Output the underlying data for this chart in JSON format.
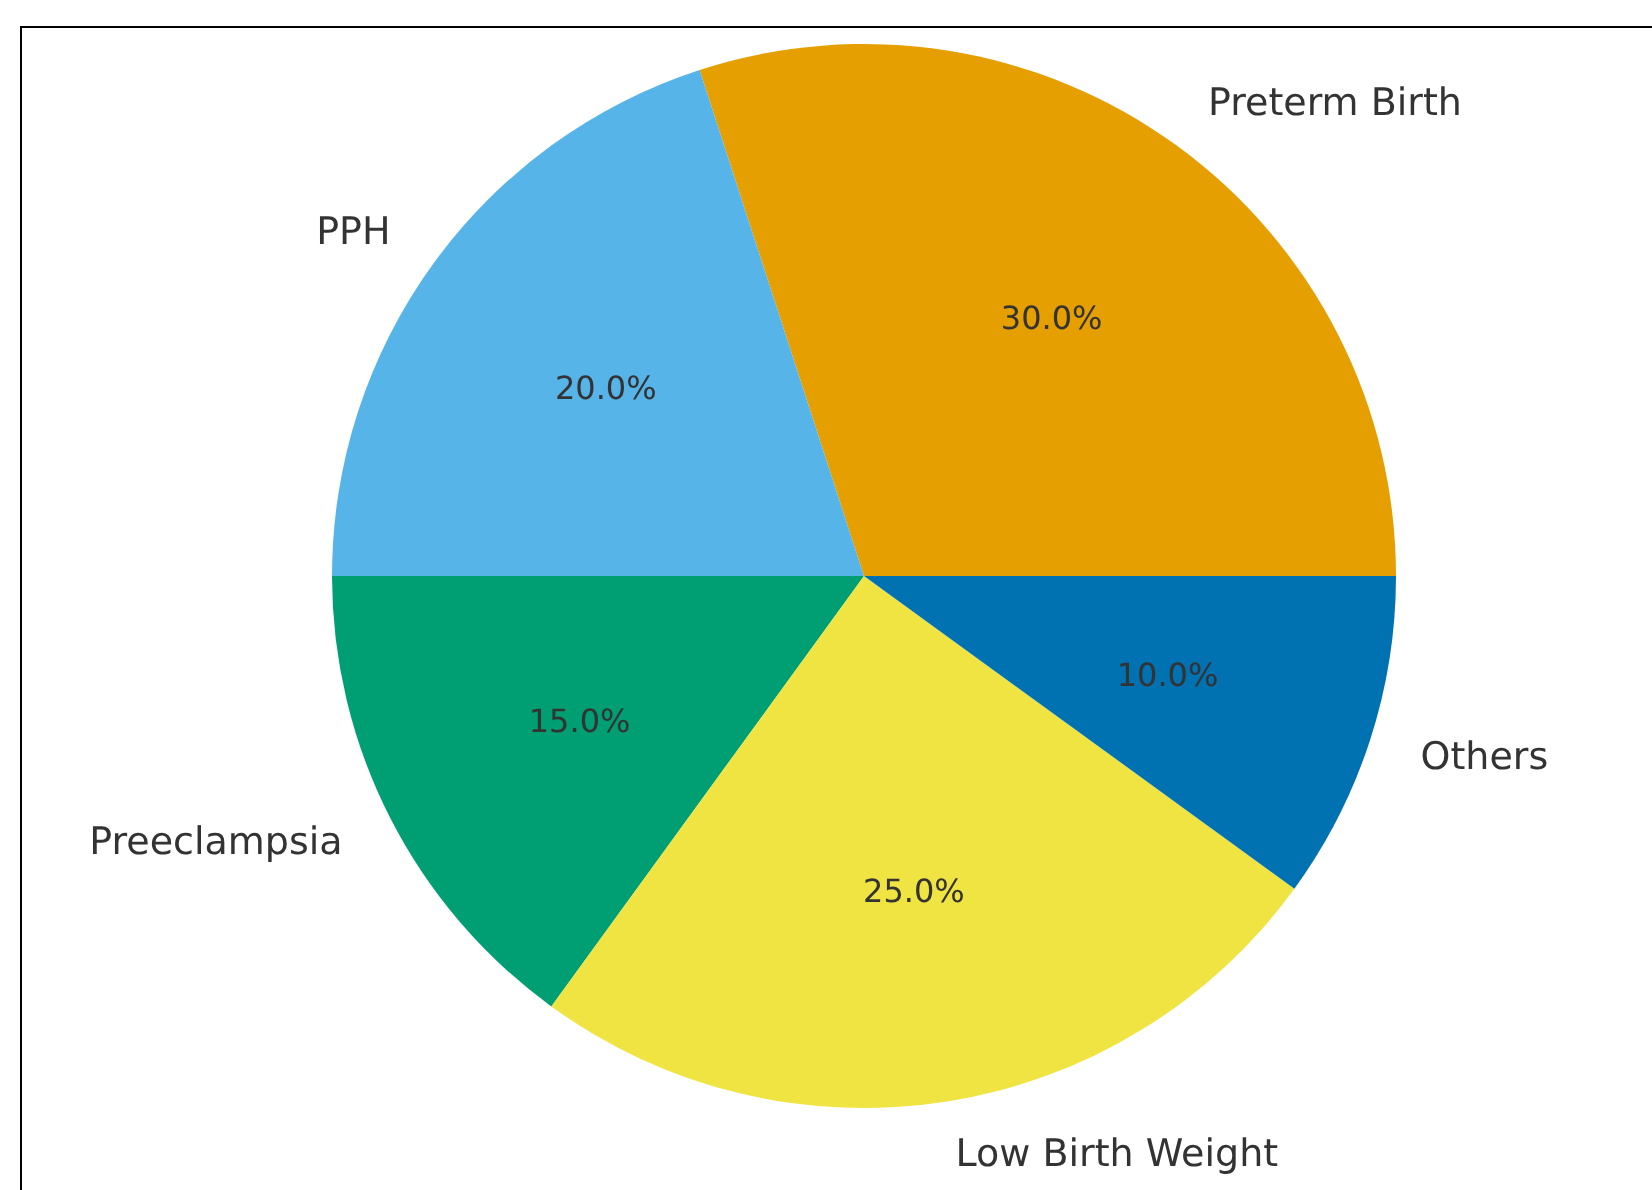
{
  "chart_data": {
    "type": "pie",
    "categories": [
      "Preterm Birth",
      "PPH",
      "Preeclampsia",
      "Low Birth Weight",
      "Others"
    ],
    "values": [
      30,
      20,
      15,
      25,
      10
    ],
    "colors": [
      "#e69f00",
      "#56b4e9",
      "#009e73",
      "#f0e442",
      "#0072b2"
    ],
    "value_labels": [
      "30.0%",
      "20.0%",
      "15.0%",
      "25.0%",
      "10.0%"
    ]
  }
}
